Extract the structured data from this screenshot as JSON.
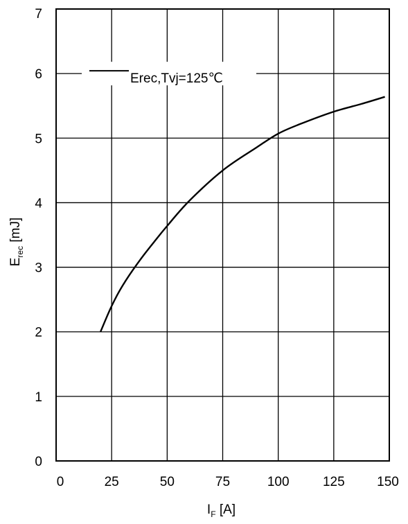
{
  "chart_data": {
    "type": "line",
    "title": "",
    "xlabel": {
      "main": "I",
      "sub": "F",
      "unit": " [A]"
    },
    "ylabel": {
      "main": "E",
      "sub": "rec",
      "unit": " [mJ]"
    },
    "xlim": [
      0,
      150
    ],
    "ylim": [
      0,
      7
    ],
    "xticks": [
      0,
      25,
      50,
      75,
      100,
      125,
      150
    ],
    "yticks": [
      0,
      1,
      2,
      3,
      4,
      5,
      6,
      7
    ],
    "xtick_labels": [
      "0",
      "25",
      "50",
      "75",
      "100",
      "125",
      "150"
    ],
    "ytick_labels": [
      "0",
      "1",
      "2",
      "3",
      "4",
      "5",
      "6",
      "7"
    ],
    "grid": true,
    "legend_position": "top-left",
    "series": [
      {
        "name": "Erec,Tvj=125℃",
        "color": "#000000",
        "x": [
          20,
          25,
          30,
          37.5,
          45,
          50,
          60,
          75,
          90,
          100,
          110,
          125,
          137.5,
          148
        ],
        "y": [
          2.0,
          2.4,
          2.72,
          3.1,
          3.43,
          3.64,
          4.03,
          4.5,
          4.85,
          5.07,
          5.22,
          5.41,
          5.53,
          5.64
        ]
      }
    ]
  }
}
